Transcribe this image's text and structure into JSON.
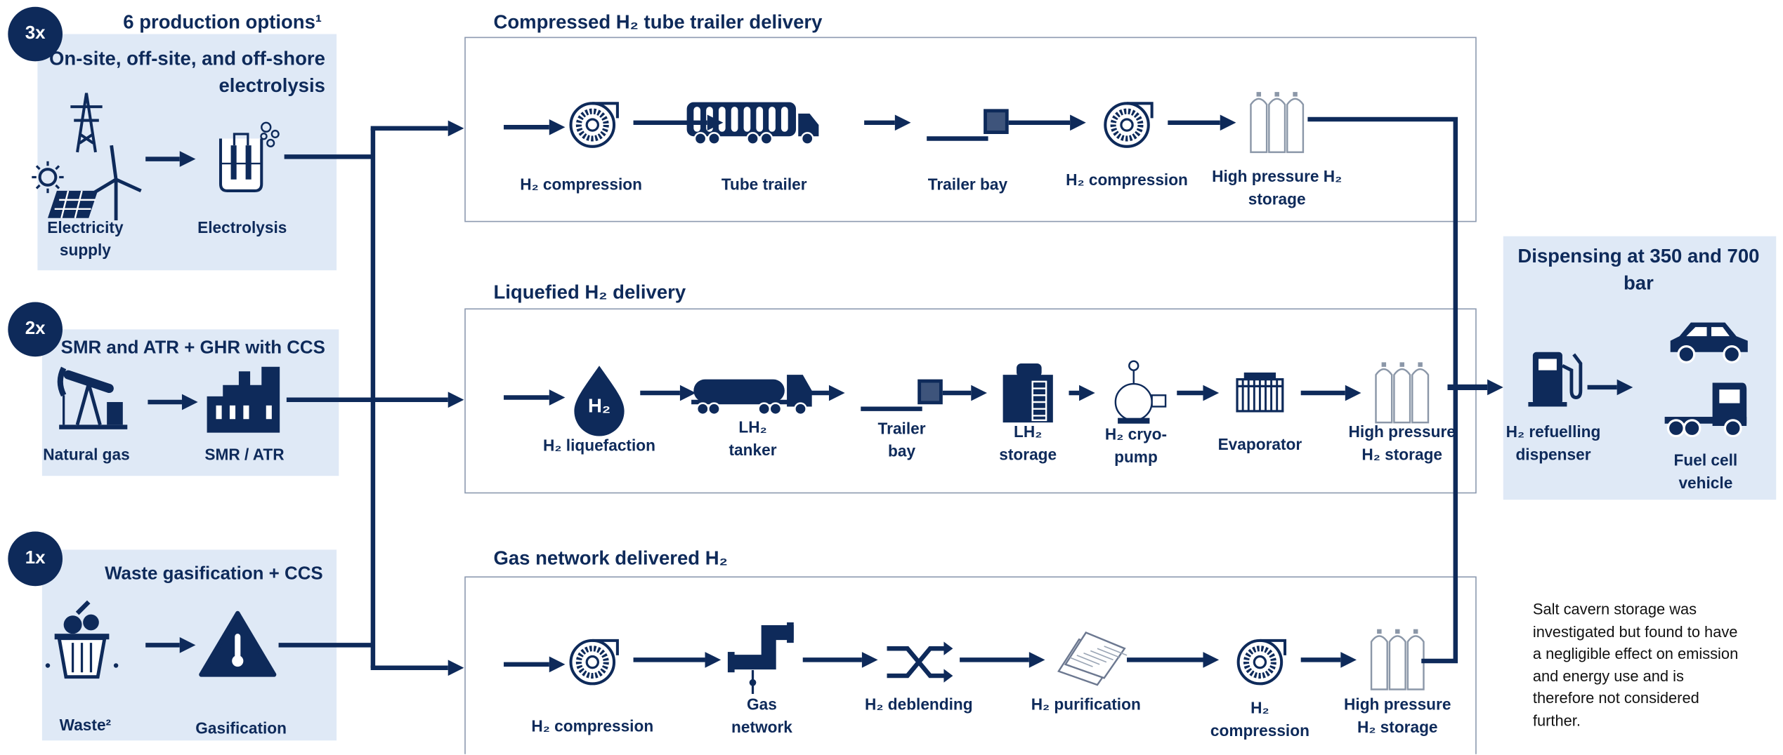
{
  "production": {
    "title": "6 production options¹",
    "options": [
      {
        "badge": "3x",
        "title": "On-site, off-site, and off-shore electrolysis",
        "steps": [
          "Electricity supply",
          "Electrolysis"
        ]
      },
      {
        "badge": "2x",
        "title": "SMR and ATR + GHR with CCS",
        "steps": [
          "Natural gas",
          "SMR / ATR"
        ]
      },
      {
        "badge": "1x",
        "title": "Waste gasification + CCS",
        "steps": [
          "Waste²",
          "Gasification"
        ]
      }
    ]
  },
  "delivery": [
    {
      "title": "Compressed H₂ tube trailer delivery",
      "steps": [
        "H₂ compression",
        "Tube trailer",
        "Trailer bay",
        "H₂ compression",
        "High pressure H₂ storage"
      ]
    },
    {
      "title": "Liquefied H₂ delivery",
      "drop_label": "H₂",
      "steps": [
        "H₂ liquefaction",
        "LH₂ tanker",
        "Trailer bay",
        "LH₂ storage",
        "H₂ cryo-pump",
        "Evaporator",
        "High pressure H₂ storage"
      ]
    },
    {
      "title": "Gas network delivered H₂",
      "steps": [
        "H₂ compression",
        "Gas network",
        "H₂ deblending",
        "H₂ purification",
        "H₂ compression",
        "High pressure H₂ storage"
      ]
    }
  ],
  "dispensing": {
    "title": "Dispensing at 350 and 700 bar",
    "steps": [
      "H₂ refuelling dispenser",
      "Fuel cell vehicle"
    ]
  },
  "note": "Salt cavern storage was investigated but found to have a negligible effect on emission and energy use and is therefore not considered further."
}
